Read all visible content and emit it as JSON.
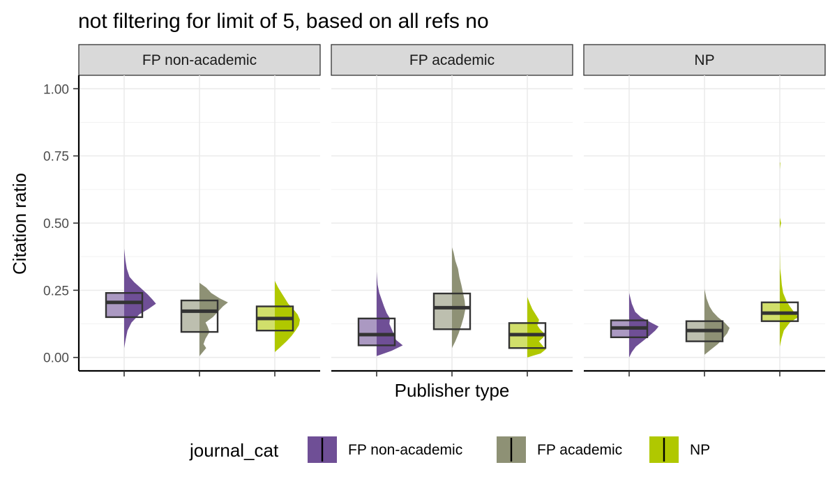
{
  "chart_data": {
    "type": "raincloud",
    "title": "not filtering for limit of 5, based on all refs no",
    "xlabel": "Publisher type",
    "ylabel": "Citation ratio",
    "ylim": [
      -0.05,
      1.05
    ],
    "yticks": [
      0.0,
      0.25,
      0.5,
      0.75,
      1.0
    ],
    "ytick_labels": [
      "0.00",
      "0.25",
      "0.50",
      "0.75",
      "1.00"
    ],
    "facets": [
      "FP non-academic",
      "FP academic",
      "NP"
    ],
    "categories": [
      "FP non-academic",
      "FP academic",
      "NP"
    ],
    "legend": {
      "title": "journal_cat",
      "position": "bottom",
      "entries": [
        "FP non-academic",
        "FP academic",
        "NP"
      ]
    },
    "colors": {
      "FP non-academic": "#6f4f96",
      "FP academic": "#8e9175",
      "NP": "#b0c800"
    },
    "panels": [
      {
        "facet": "FP non-academic",
        "groups": [
          {
            "category": "FP non-academic",
            "q1": 0.15,
            "median": 0.205,
            "q3": 0.24,
            "min": 0.035,
            "max": 0.405,
            "density": [
              [
                0.035,
                0.0
              ],
              [
                0.07,
                0.05
              ],
              [
                0.1,
                0.1
              ],
              [
                0.13,
                0.22
              ],
              [
                0.16,
                0.45
              ],
              [
                0.18,
                0.72
              ],
              [
                0.2,
                0.95
              ],
              [
                0.215,
                0.85
              ],
              [
                0.235,
                0.7
              ],
              [
                0.26,
                0.48
              ],
              [
                0.28,
                0.3
              ],
              [
                0.3,
                0.16
              ],
              [
                0.33,
                0.08
              ],
              [
                0.36,
                0.04
              ],
              [
                0.405,
                0.0
              ]
            ]
          },
          {
            "category": "FP academic",
            "q1": 0.095,
            "median": 0.172,
            "q3": 0.212,
            "min": 0.005,
            "max": 0.278,
            "density": [
              [
                0.005,
                0.0
              ],
              [
                0.02,
                0.1
              ],
              [
                0.035,
                0.2
              ],
              [
                0.05,
                0.12
              ],
              [
                0.07,
                0.18
              ],
              [
                0.095,
                0.3
              ],
              [
                0.115,
                0.24
              ],
              [
                0.13,
                0.18
              ],
              [
                0.15,
                0.4
              ],
              [
                0.17,
                0.55
              ],
              [
                0.19,
                0.7
              ],
              [
                0.205,
                0.85
              ],
              [
                0.22,
                0.6
              ],
              [
                0.24,
                0.35
              ],
              [
                0.26,
                0.2
              ],
              [
                0.278,
                0.0
              ]
            ]
          },
          {
            "category": "NP",
            "q1": 0.1,
            "median": 0.145,
            "q3": 0.19,
            "min": 0.02,
            "max": 0.285,
            "density": [
              [
                0.02,
                0.0
              ],
              [
                0.04,
                0.18
              ],
              [
                0.06,
                0.35
              ],
              [
                0.08,
                0.5
              ],
              [
                0.1,
                0.62
              ],
              [
                0.12,
                0.72
              ],
              [
                0.14,
                0.75
              ],
              [
                0.16,
                0.68
              ],
              [
                0.18,
                0.55
              ],
              [
                0.2,
                0.4
              ],
              [
                0.22,
                0.3
              ],
              [
                0.24,
                0.2
              ],
              [
                0.26,
                0.1
              ],
              [
                0.285,
                0.0
              ]
            ]
          }
        ]
      },
      {
        "facet": "FP academic",
        "groups": [
          {
            "category": "FP non-academic",
            "q1": 0.045,
            "median": 0.085,
            "q3": 0.145,
            "min": 0.005,
            "max": 0.32,
            "density": [
              [
                0.005,
                0.0
              ],
              [
                0.025,
                0.45
              ],
              [
                0.045,
                0.78
              ],
              [
                0.065,
                0.58
              ],
              [
                0.085,
                0.52
              ],
              [
                0.105,
                0.45
              ],
              [
                0.125,
                0.38
              ],
              [
                0.145,
                0.4
              ],
              [
                0.165,
                0.3
              ],
              [
                0.19,
                0.22
              ],
              [
                0.215,
                0.15
              ],
              [
                0.24,
                0.08
              ],
              [
                0.27,
                0.03
              ],
              [
                0.3,
                0.01
              ],
              [
                0.32,
                0.0
              ]
            ]
          },
          {
            "category": "FP academic",
            "q1": 0.105,
            "median": 0.185,
            "q3": 0.238,
            "min": 0.035,
            "max": 0.41,
            "density": [
              [
                0.035,
                0.0
              ],
              [
                0.06,
                0.1
              ],
              [
                0.09,
                0.2
              ],
              [
                0.12,
                0.28
              ],
              [
                0.15,
                0.35
              ],
              [
                0.18,
                0.4
              ],
              [
                0.21,
                0.38
              ],
              [
                0.24,
                0.33
              ],
              [
                0.27,
                0.28
              ],
              [
                0.3,
                0.22
              ],
              [
                0.33,
                0.18
              ],
              [
                0.36,
                0.1
              ],
              [
                0.39,
                0.05
              ],
              [
                0.41,
                0.0
              ]
            ]
          },
          {
            "category": "NP",
            "q1": 0.035,
            "median": 0.085,
            "q3": 0.128,
            "min": 0.0,
            "max": 0.225,
            "density": [
              [
                0.0,
                0.0
              ],
              [
                0.015,
                0.4
              ],
              [
                0.03,
                0.55
              ],
              [
                0.045,
                0.45
              ],
              [
                0.06,
                0.35
              ],
              [
                0.075,
                0.48
              ],
              [
                0.09,
                0.5
              ],
              [
                0.105,
                0.38
              ],
              [
                0.12,
                0.3
              ],
              [
                0.14,
                0.35
              ],
              [
                0.16,
                0.25
              ],
              [
                0.18,
                0.15
              ],
              [
                0.2,
                0.08
              ],
              [
                0.225,
                0.0
              ]
            ]
          }
        ]
      },
      {
        "facet": "NP",
        "groups": [
          {
            "category": "FP non-academic",
            "q1": 0.075,
            "median": 0.11,
            "q3": 0.138,
            "min": 0.0,
            "max": 0.24,
            "density": [
              [
                0.0,
                0.0
              ],
              [
                0.02,
                0.08
              ],
              [
                0.04,
                0.2
              ],
              [
                0.06,
                0.4
              ],
              [
                0.08,
                0.6
              ],
              [
                0.1,
                0.78
              ],
              [
                0.115,
                0.88
              ],
              [
                0.13,
                0.65
              ],
              [
                0.15,
                0.35
              ],
              [
                0.17,
                0.18
              ],
              [
                0.2,
                0.08
              ],
              [
                0.24,
                0.0
              ]
            ]
          },
          {
            "category": "FP academic",
            "q1": 0.06,
            "median": 0.1,
            "q3": 0.135,
            "min": 0.01,
            "max": 0.255,
            "density": [
              [
                0.01,
                0.0
              ],
              [
                0.03,
                0.2
              ],
              [
                0.05,
                0.4
              ],
              [
                0.07,
                0.55
              ],
              [
                0.09,
                0.68
              ],
              [
                0.11,
                0.75
              ],
              [
                0.13,
                0.6
              ],
              [
                0.15,
                0.4
              ],
              [
                0.17,
                0.25
              ],
              [
                0.19,
                0.15
              ],
              [
                0.22,
                0.06
              ],
              [
                0.255,
                0.0
              ]
            ]
          },
          {
            "category": "NP",
            "q1": 0.135,
            "median": 0.165,
            "q3": 0.205,
            "min": 0.04,
            "max": 0.725,
            "density": [
              [
                0.04,
                0.0
              ],
              [
                0.07,
                0.05
              ],
              [
                0.1,
                0.12
              ],
              [
                0.13,
                0.3
              ],
              [
                0.15,
                0.55
              ],
              [
                0.17,
                0.42
              ],
              [
                0.19,
                0.3
              ],
              [
                0.21,
                0.2
              ],
              [
                0.24,
                0.1
              ],
              [
                0.27,
                0.06
              ],
              [
                0.3,
                0.04
              ],
              [
                0.33,
                0.01
              ],
              [
                0.4,
                0.0
              ],
              [
                0.48,
                0.0
              ],
              [
                0.5,
                0.04
              ],
              [
                0.52,
                0.0
              ],
              [
                0.7,
                0.0
              ],
              [
                0.725,
                0.015
              ]
            ]
          }
        ]
      }
    ]
  }
}
